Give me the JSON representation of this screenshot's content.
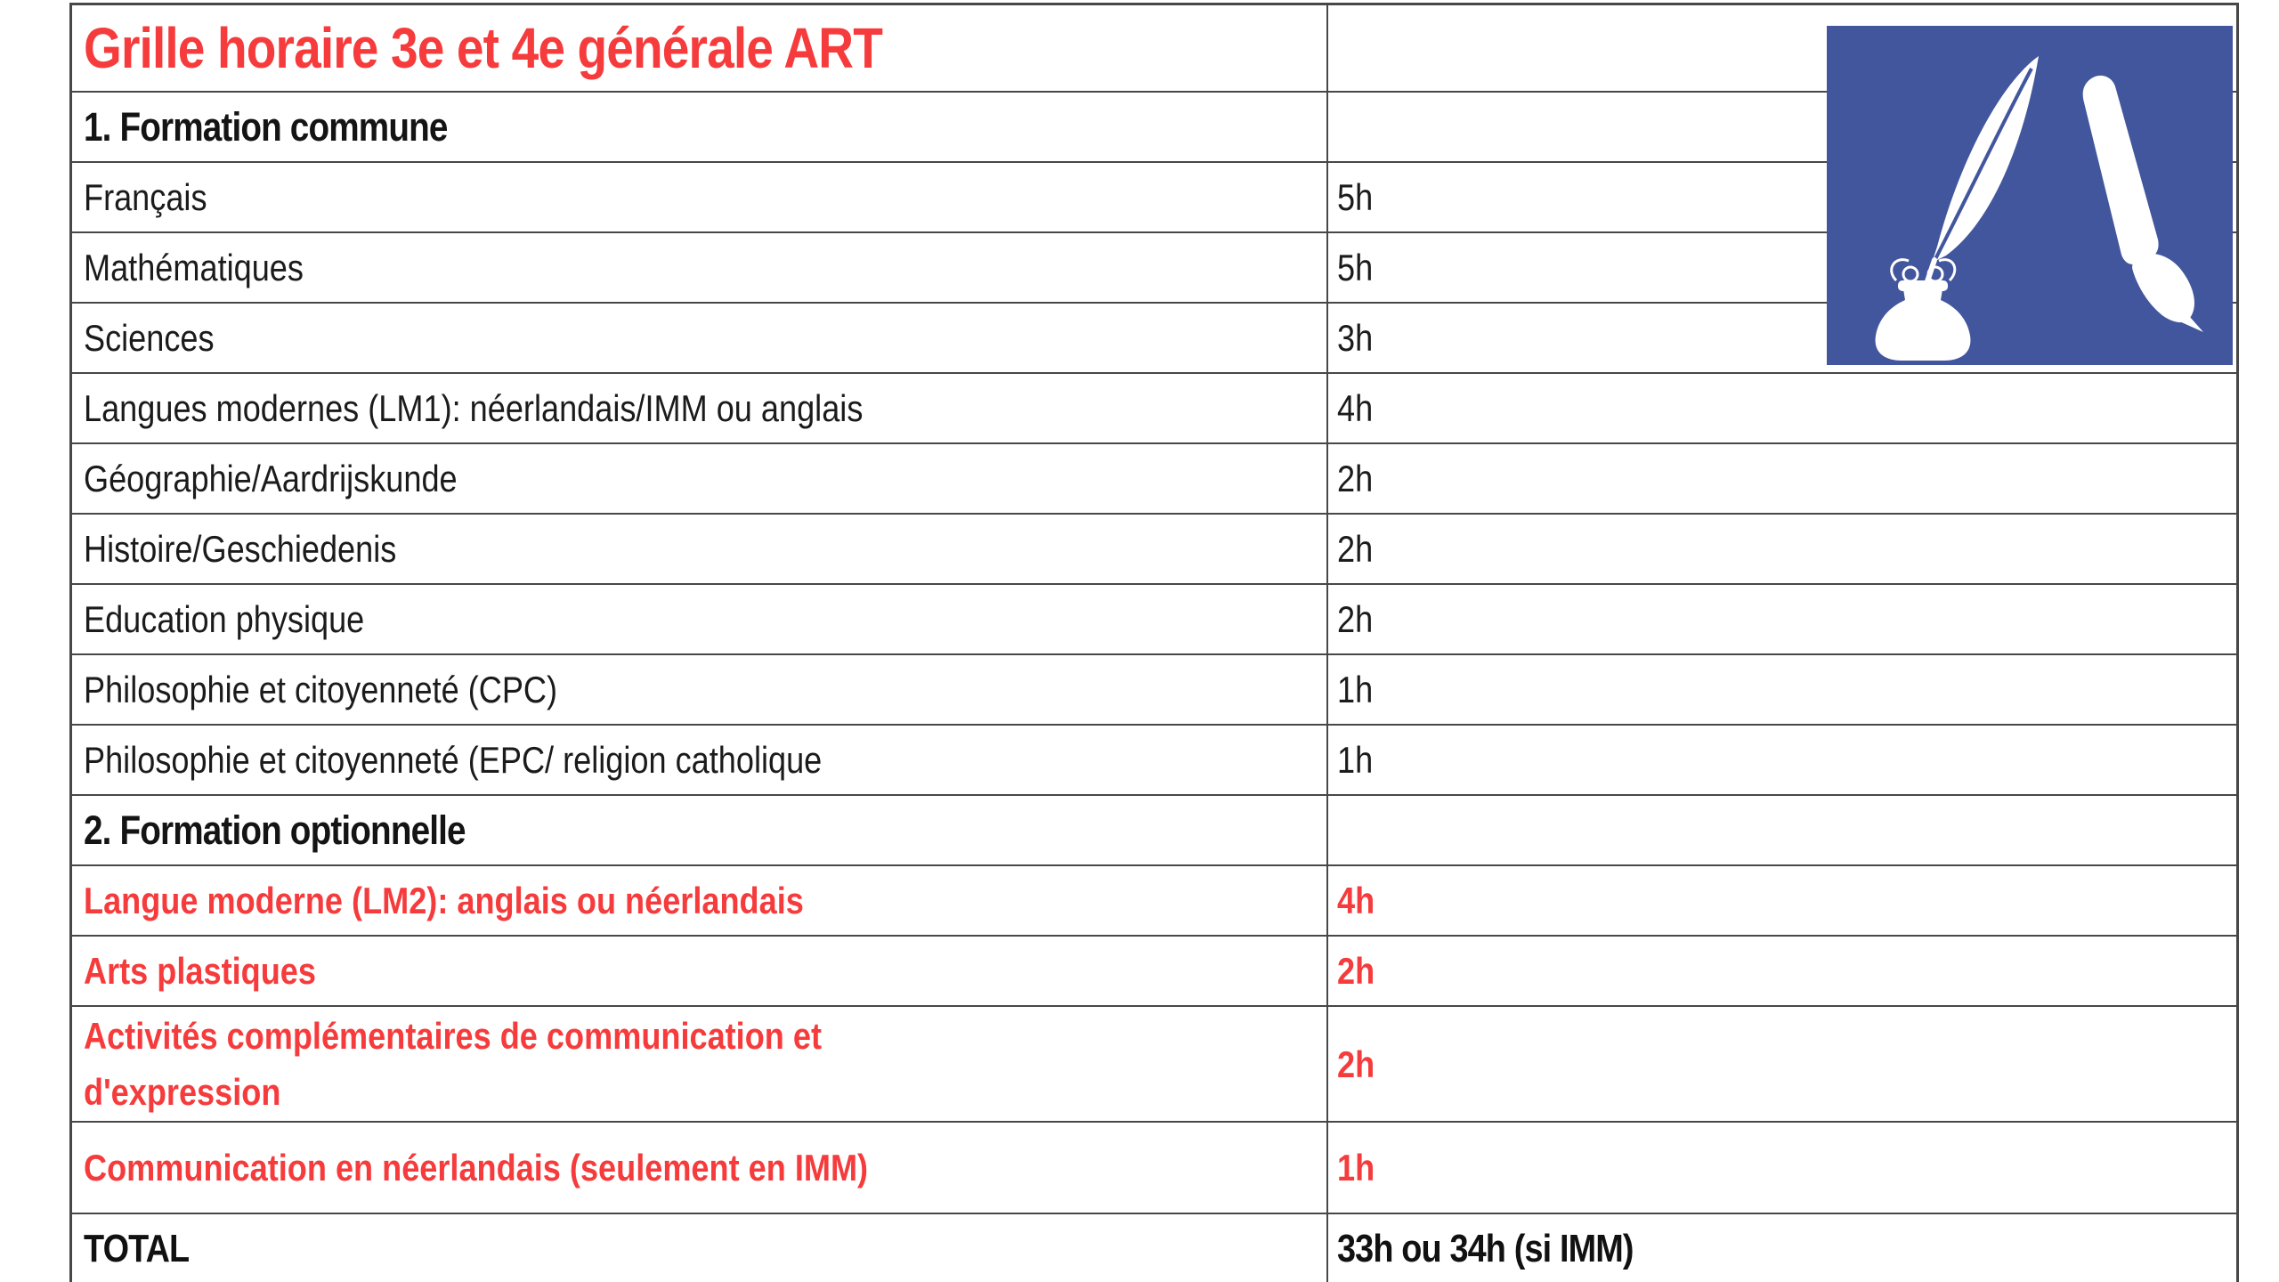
{
  "colors": {
    "accent_red": "#f63b3c",
    "text_black": "#1b1b1b",
    "border_gray": "#474747",
    "logo_blue": "#42569e",
    "logo_white": "#ffffff"
  },
  "logo": {
    "icon": "quill-inkwell-and-paintbrush-logo"
  },
  "table": {
    "rows": [
      {
        "label": "Grille horaire 3e et 4e générale ART",
        "hours": "",
        "style": "title"
      },
      {
        "label": "1. Formation commune",
        "hours": "",
        "style": "section"
      },
      {
        "label": "Français",
        "hours": "5h",
        "style": "subject"
      },
      {
        "label": "Mathématiques",
        "hours": "5h",
        "style": "subject"
      },
      {
        "label": "Sciences",
        "hours": "3h",
        "style": "subject"
      },
      {
        "label": "Langues modernes (LM1): néerlandais/IMM ou anglais",
        "hours": "4h",
        "style": "subject"
      },
      {
        "label": "Géographie/Aardrijskunde",
        "hours": "2h",
        "style": "subject"
      },
      {
        "label": "Histoire/Geschiedenis",
        "hours": "2h",
        "style": "subject"
      },
      {
        "label": "Education physique",
        "hours": "2h",
        "style": "subject"
      },
      {
        "label": "Philosophie et citoyenneté (CPC)",
        "hours": "1h",
        "style": "subject"
      },
      {
        "label": "Philosophie et citoyenneté (EPC/ religion catholique",
        "hours": "1h",
        "style": "subject"
      },
      {
        "label": "2. Formation optionnelle",
        "hours": "",
        "style": "section"
      },
      {
        "label": "Langue moderne (LM2): anglais ou néerlandais",
        "hours": "4h",
        "style": "optional"
      },
      {
        "label": "Arts plastiques",
        "hours": "2h",
        "style": "optional"
      },
      {
        "label": "Activités complémentaires de communication et\nd'expression",
        "hours": "2h",
        "style": "optional",
        "tall": true
      },
      {
        "label": "Communication en néerlandais (seulement en IMM)",
        "hours": "1h",
        "style": "optional",
        "mid": true
      },
      {
        "label": "TOTAL",
        "hours": "33h ou 34h (si IMM)",
        "style": "total"
      }
    ]
  }
}
